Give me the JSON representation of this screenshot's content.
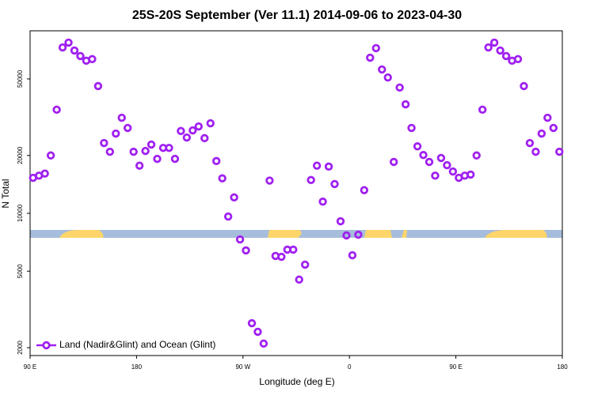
{
  "chart_data": {
    "type": "scatter",
    "title": "25S-20S September (Ver 11.1)   2014-09-06 to 2023-04-30",
    "x_label": "Longitude (deg E)",
    "y_label": "N Total",
    "x": [
      92.5,
      97.5,
      102.5,
      107.5,
      112.5,
      117.5,
      122.5,
      127.5,
      132.5,
      137.5,
      142.5,
      147.5,
      152.5,
      157.5,
      162.5,
      167.5,
      172.5,
      177.5,
      182.5,
      187.5,
      192.5,
      197.5,
      202.5,
      207.5,
      212.5,
      217.5,
      222.5,
      227.5,
      232.5,
      237.5,
      242.5,
      247.5,
      252.5,
      257.5,
      262.5,
      267.5,
      272.5,
      277.5,
      282.5,
      287.5,
      292.5,
      297.5,
      302.5,
      307.5,
      312.5,
      317.5,
      322.5,
      327.5,
      332.5,
      337.5,
      342.5,
      347.5,
      352.5,
      357.5,
      362.5,
      367.5,
      372.5,
      377.5,
      382.5,
      387.5,
      392.5,
      397.5,
      402.5,
      407.5,
      412.5,
      417.5,
      422.5,
      427.5,
      432.5,
      437.5,
      442.5,
      447.5,
      452.5,
      457.5,
      462.5,
      467.5,
      472.5,
      477.5,
      482.5,
      487.5,
      492.5,
      497.5,
      502.5,
      507.5,
      512.5,
      517.5,
      522.5,
      527.5,
      532.5,
      537.5
    ],
    "series": [
      {
        "name": "Land (Nadir&Glint) and Ocean (Glint)",
        "color": "#a020f0",
        "values": [
          15300,
          15700,
          16100,
          20000,
          34600,
          72900,
          77300,
          70300,
          65800,
          62200,
          63400,
          45900,
          23200,
          20900,
          26000,
          31400,
          27800,
          20900,
          17700,
          21100,
          22800,
          19200,
          21900,
          21900,
          19200,
          26800,
          24800,
          27000,
          28300,
          24600,
          29400,
          18700,
          15200,
          9620,
          12100,
          7310,
          6410,
          2680,
          2420,
          2100,
          14800,
          6000,
          5940,
          6470,
          6470,
          4520,
          5410,
          14900,
          17700,
          11500,
          17500,
          14200,
          9090,
          7670,
          6050,
          7740,
          13200,
          64500,
          72300,
          56000,
          50900,
          18500,
          45100,
          36900,
          27800,
          22300,
          20100,
          18500,
          15700,
          19400,
          17800,
          16500,
          15300,
          15700,
          15900,
          20000,
          34600,
          72900,
          77300,
          70300,
          65800,
          62200,
          63400,
          45900,
          23200,
          20900,
          26000,
          31400,
          27800,
          20900
        ]
      }
    ],
    "xlim": [
      90,
      540
    ],
    "xticks": [
      {
        "value": 90,
        "label": "90 E"
      },
      180,
      {
        "value": 270,
        "label": "90 W"
      },
      {
        "value": 360,
        "label": "0"
      },
      {
        "value": 450,
        "label": "90 E"
      },
      180
    ],
    "ylim": [
      1820,
      89000
    ],
    "y_log": true,
    "yticks": [
      2000,
      5000,
      10000,
      20000,
      50000
    ],
    "legend": "bottom-left"
  }
}
